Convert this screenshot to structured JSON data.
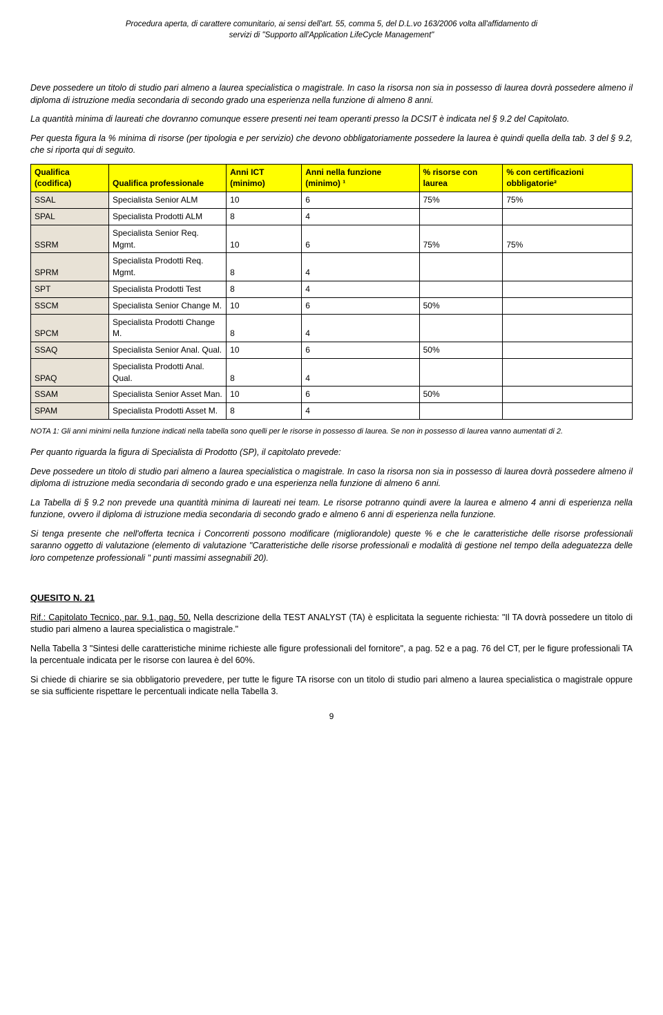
{
  "header": {
    "line1": "Procedura aperta, di carattere comunitario, ai sensi dell'art. 55, comma 5, del D.L.vo 163/2006 volta all'affidamento di",
    "line2": "servizi di \"Supporto all'Application LifeCycle Management\""
  },
  "p1": "Deve possedere un titolo di studio pari almeno a laurea specialistica o magistrale. In caso la risorsa non sia in possesso di laurea dovrà possedere almeno il diploma di istruzione media secondaria di secondo grado una esperienza nella funzione di almeno 8 anni.",
  "p2": "La quantità minima di laureati che dovranno comunque essere presenti nei team operanti presso la DCSIT è indicata nel § 9.2 del Capitolato.",
  "p3": "Per questa figura la % minima di risorse (per tipologia e per servizio) che devono obbligatoriamente possedere la laurea è quindi quella della tab. 3 del § 9.2, che si riporta qui di seguito.",
  "table": {
    "headers": {
      "c1": "Qualifica (codifica)",
      "c2": "Qualifica professionale",
      "c3": "Anni ICT (minimo)",
      "c4": "Anni nella funzione (minimo) ¹",
      "c5": "% risorse con laurea",
      "c6": "% con certificazioni obbligatorie²"
    },
    "rows": [
      {
        "code": "SSAL",
        "prof": "Specialista Senior ALM",
        "ict": "10",
        "funz": "6",
        "laurea": "75%",
        "cert": "75%"
      },
      {
        "code": "SPAL",
        "prof": "Specialista Prodotti ALM",
        "ict": "8",
        "funz": "4",
        "laurea": "",
        "cert": ""
      },
      {
        "code": "SSRM",
        "prof": "Specialista Senior Req. Mgmt.",
        "ict": "10",
        "funz": "6",
        "laurea": "75%",
        "cert": "75%"
      },
      {
        "code": "SPRM",
        "prof": "Specialista Prodotti Req. Mgmt.",
        "ict": "8",
        "funz": "4",
        "laurea": "",
        "cert": ""
      },
      {
        "code": "SPT",
        "prof": "Specialista Prodotti Test",
        "ict": "8",
        "funz": "4",
        "laurea": "",
        "cert": ""
      },
      {
        "code": "SSCM",
        "prof": "Specialista Senior Change M.",
        "ict": "10",
        "funz": "6",
        "laurea": "50%",
        "cert": ""
      },
      {
        "code": "SPCM",
        "prof": "Specialista Prodotti Change M.",
        "ict": "8",
        "funz": "4",
        "laurea": "",
        "cert": ""
      },
      {
        "code": "SSAQ",
        "prof": "Specialista Senior Anal. Qual.",
        "ict": "10",
        "funz": "6",
        "laurea": "50%",
        "cert": ""
      },
      {
        "code": "SPAQ",
        "prof": "Specialista Prodotti Anal. Qual.",
        "ict": "8",
        "funz": "4",
        "laurea": "",
        "cert": ""
      },
      {
        "code": "SSAM",
        "prof": "Specialista Senior Asset Man.",
        "ict": "10",
        "funz": "6",
        "laurea": "50%",
        "cert": ""
      },
      {
        "code": "SPAM",
        "prof": "Specialista Prodotti Asset M.",
        "ict": "8",
        "funz": "4",
        "laurea": "",
        "cert": ""
      }
    ]
  },
  "nota1": "NOTA 1: Gli anni minimi nella funzione indicati nella tabella sono quelli per le risorse in possesso di laurea. Se non in possesso di laurea vanno aumentati di 2.",
  "p4": "Per quanto riguarda la figura di Specialista di Prodotto (SP), il capitolato prevede:",
  "p5": "Deve possedere un titolo di studio pari almeno a laurea specialistica o magistrale. In caso la risorsa non sia in possesso di laurea dovrà possedere almeno il diploma di istruzione media secondaria di secondo grado e una esperienza nella funzione di almeno 6 anni.",
  "p6": "La Tabella di § 9.2 non prevede una quantità minima di laureati nei team. Le risorse potranno quindi avere la laurea e almeno 4 anni di esperienza nella funzione, ovvero il diploma di istruzione media secondaria di secondo grado e almeno 6 anni di esperienza nella funzione.",
  "p7": "Si tenga presente che nell'offerta tecnica i Concorrenti possono modificare (migliorandole) queste % e che le caratteristiche delle risorse professionali saranno oggetto di valutazione (elemento di valutazione \"Caratteristiche delle risorse professionali e modalità di gestione nel tempo della adeguatezza delle loro competenze professionali \" punti massimi assegnabili 20).",
  "quesito": {
    "title": "QUESITO N. 21",
    "ref": "Rif.: Capitolato Tecnico, par. 9.1, pag. 50.",
    "rest": " Nella descrizione della TEST ANALYST (TA) è esplicitata la seguente richiesta: \"Il TA dovrà possedere un titolo di studio pari almeno a laurea specialistica o magistrale.\"",
    "p2": "Nella Tabella 3 \"Sintesi delle caratteristiche minime richieste alle figure professionali del fornitore\", a pag. 52 e a pag. 76 del CT, per le figure professionali TA la percentuale indicata per le risorse con laurea  è del 60%.",
    "p3": "Si chiede di chiarire se sia obbligatorio prevedere, per tutte le figure TA risorse con un titolo di studio pari almeno a laurea specialistica o magistrale oppure se sia sufficiente rispettare le percentuali indicate nella Tabella 3."
  },
  "pageNum": "9"
}
